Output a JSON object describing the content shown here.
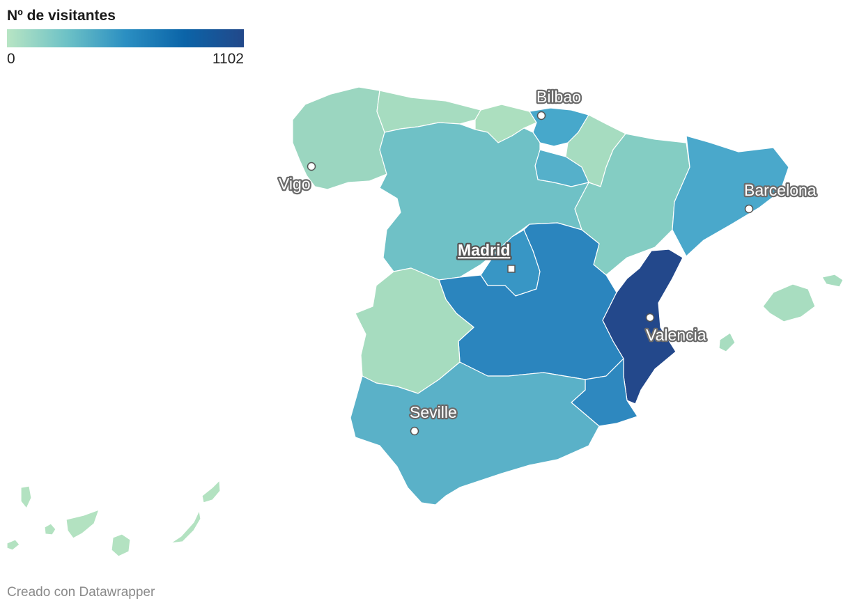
{
  "legend": {
    "title": "Nº de visitantes",
    "min_label": "0",
    "max_label": "1102",
    "min": 0,
    "max": 1102,
    "colors": [
      "#b8e5c4",
      "#6ec2c6",
      "#2b8fc2",
      "#0b64a8",
      "#22488a"
    ]
  },
  "regions": [
    {
      "name": "Galicia",
      "color": "#9bd6c0"
    },
    {
      "name": "Asturias",
      "color": "#a6dcc0"
    },
    {
      "name": "Cantabria",
      "color": "#acdfbf"
    },
    {
      "name": "País Vasco",
      "color": "#47a8cb"
    },
    {
      "name": "Navarra",
      "color": "#a6dcc0"
    },
    {
      "name": "La Rioja",
      "color": "#55b0ca"
    },
    {
      "name": "Aragón",
      "color": "#84cdc3"
    },
    {
      "name": "Cataluña",
      "color": "#4aa8cb"
    },
    {
      "name": "Castilla y León",
      "color": "#6fc1c6"
    },
    {
      "name": "Madrid",
      "color": "#3896c5"
    },
    {
      "name": "Castilla-La Mancha",
      "color": "#2b85be"
    },
    {
      "name": "Extremadura",
      "color": "#a6dcbf"
    },
    {
      "name": "Comunidad Valenciana",
      "color": "#23488b"
    },
    {
      "name": "Murcia",
      "color": "#2e88bf"
    },
    {
      "name": "Andalucía",
      "color": "#5ab1c8"
    },
    {
      "name": "Islas Baleares",
      "color": "#a8ddc0"
    },
    {
      "name": "Canarias",
      "color": "#b3e2c1"
    }
  ],
  "cities": [
    {
      "name": "Bilbao"
    },
    {
      "name": "Vigo"
    },
    {
      "name": "Barcelona"
    },
    {
      "name": "Madrid",
      "capital": true
    },
    {
      "name": "Valencia"
    },
    {
      "name": "Seville"
    }
  ],
  "footer": "Creado con Datawrapper"
}
